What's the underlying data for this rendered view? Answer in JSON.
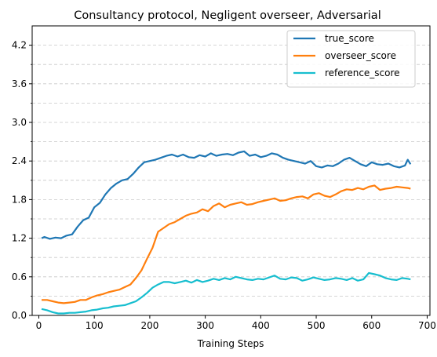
{
  "chart_data": {
    "type": "line",
    "title": "Consultancy protocol, Negligent overseer, Adversarial",
    "xlabel": "Training Steps",
    "ylabel": "",
    "xlim": [
      -12,
      705
    ],
    "ylim": [
      0.0,
      4.5
    ],
    "xticks": [
      0,
      100,
      200,
      300,
      400,
      500,
      600,
      700
    ],
    "yticks": [
      0.0,
      0.6,
      1.2,
      1.8,
      2.4,
      3.0,
      3.6,
      4.2
    ],
    "ytick_labels": [
      "0.0",
      "0.6",
      "1.2",
      "1.8",
      "2.4",
      "3.0",
      "3.6",
      "4.2"
    ],
    "grid": "horizontal dashed",
    "legend_position": "top-right",
    "series": [
      {
        "name": "true_score",
        "color": "#1f77b4",
        "points": [
          [
            5,
            1.2
          ],
          [
            10,
            1.22
          ],
          [
            20,
            1.19
          ],
          [
            30,
            1.21
          ],
          [
            40,
            1.2
          ],
          [
            50,
            1.24
          ],
          [
            60,
            1.26
          ],
          [
            70,
            1.38
          ],
          [
            80,
            1.48
          ],
          [
            90,
            1.52
          ],
          [
            100,
            1.68
          ],
          [
            110,
            1.75
          ],
          [
            120,
            1.88
          ],
          [
            130,
            1.98
          ],
          [
            140,
            2.05
          ],
          [
            150,
            2.1
          ],
          [
            160,
            2.12
          ],
          [
            170,
            2.2
          ],
          [
            180,
            2.3
          ],
          [
            190,
            2.38
          ],
          [
            200,
            2.4
          ],
          [
            210,
            2.42
          ],
          [
            220,
            2.45
          ],
          [
            230,
            2.48
          ],
          [
            240,
            2.5
          ],
          [
            250,
            2.47
          ],
          [
            260,
            2.5
          ],
          [
            270,
            2.46
          ],
          [
            280,
            2.45
          ],
          [
            290,
            2.49
          ],
          [
            300,
            2.47
          ],
          [
            310,
            2.52
          ],
          [
            320,
            2.48
          ],
          [
            330,
            2.5
          ],
          [
            340,
            2.51
          ],
          [
            350,
            2.49
          ],
          [
            360,
            2.53
          ],
          [
            370,
            2.55
          ],
          [
            380,
            2.48
          ],
          [
            390,
            2.5
          ],
          [
            400,
            2.46
          ],
          [
            410,
            2.48
          ],
          [
            420,
            2.52
          ],
          [
            430,
            2.5
          ],
          [
            440,
            2.45
          ],
          [
            450,
            2.42
          ],
          [
            460,
            2.4
          ],
          [
            470,
            2.38
          ],
          [
            480,
            2.36
          ],
          [
            490,
            2.4
          ],
          [
            500,
            2.32
          ],
          [
            510,
            2.3
          ],
          [
            520,
            2.33
          ],
          [
            530,
            2.32
          ],
          [
            540,
            2.36
          ],
          [
            550,
            2.42
          ],
          [
            560,
            2.45
          ],
          [
            570,
            2.4
          ],
          [
            580,
            2.35
          ],
          [
            590,
            2.32
          ],
          [
            600,
            2.38
          ],
          [
            610,
            2.35
          ],
          [
            620,
            2.34
          ],
          [
            630,
            2.36
          ],
          [
            640,
            2.32
          ],
          [
            650,
            2.3
          ],
          [
            660,
            2.33
          ],
          [
            665,
            2.42
          ],
          [
            670,
            2.35
          ]
        ]
      },
      {
        "name": "overseer_score",
        "color": "#ff7f0e",
        "points": [
          [
            5,
            0.24
          ],
          [
            15,
            0.24
          ],
          [
            25,
            0.22
          ],
          [
            35,
            0.2
          ],
          [
            45,
            0.19
          ],
          [
            55,
            0.2
          ],
          [
            65,
            0.21
          ],
          [
            75,
            0.24
          ],
          [
            85,
            0.24
          ],
          [
            95,
            0.28
          ],
          [
            105,
            0.31
          ],
          [
            115,
            0.33
          ],
          [
            125,
            0.36
          ],
          [
            135,
            0.38
          ],
          [
            145,
            0.4
          ],
          [
            155,
            0.44
          ],
          [
            165,
            0.48
          ],
          [
            175,
            0.58
          ],
          [
            185,
            0.7
          ],
          [
            195,
            0.88
          ],
          [
            205,
            1.05
          ],
          [
            215,
            1.3
          ],
          [
            225,
            1.36
          ],
          [
            235,
            1.42
          ],
          [
            245,
            1.45
          ],
          [
            255,
            1.5
          ],
          [
            265,
            1.55
          ],
          [
            275,
            1.58
          ],
          [
            285,
            1.6
          ],
          [
            295,
            1.65
          ],
          [
            305,
            1.62
          ],
          [
            315,
            1.7
          ],
          [
            325,
            1.74
          ],
          [
            335,
            1.68
          ],
          [
            345,
            1.72
          ],
          [
            355,
            1.74
          ],
          [
            365,
            1.76
          ],
          [
            375,
            1.72
          ],
          [
            385,
            1.73
          ],
          [
            395,
            1.76
          ],
          [
            405,
            1.78
          ],
          [
            415,
            1.8
          ],
          [
            425,
            1.82
          ],
          [
            435,
            1.78
          ],
          [
            445,
            1.79
          ],
          [
            455,
            1.82
          ],
          [
            465,
            1.84
          ],
          [
            475,
            1.85
          ],
          [
            485,
            1.82
          ],
          [
            495,
            1.88
          ],
          [
            505,
            1.9
          ],
          [
            515,
            1.86
          ],
          [
            525,
            1.84
          ],
          [
            535,
            1.88
          ],
          [
            545,
            1.93
          ],
          [
            555,
            1.96
          ],
          [
            565,
            1.95
          ],
          [
            575,
            1.98
          ],
          [
            585,
            1.96
          ],
          [
            595,
            2.0
          ],
          [
            605,
            2.02
          ],
          [
            615,
            1.95
          ],
          [
            625,
            1.97
          ],
          [
            635,
            1.98
          ],
          [
            645,
            2.0
          ],
          [
            655,
            1.99
          ],
          [
            665,
            1.98
          ],
          [
            670,
            1.97
          ]
        ]
      },
      {
        "name": "reference_score",
        "color": "#17becf",
        "points": [
          [
            5,
            0.1
          ],
          [
            15,
            0.08
          ],
          [
            25,
            0.05
          ],
          [
            35,
            0.03
          ],
          [
            45,
            0.03
          ],
          [
            55,
            0.04
          ],
          [
            65,
            0.04
          ],
          [
            75,
            0.05
          ],
          [
            85,
            0.06
          ],
          [
            95,
            0.08
          ],
          [
            105,
            0.09
          ],
          [
            115,
            0.11
          ],
          [
            125,
            0.12
          ],
          [
            135,
            0.14
          ],
          [
            145,
            0.15
          ],
          [
            155,
            0.16
          ],
          [
            165,
            0.19
          ],
          [
            175,
            0.22
          ],
          [
            185,
            0.28
          ],
          [
            195,
            0.35
          ],
          [
            205,
            0.43
          ],
          [
            215,
            0.48
          ],
          [
            225,
            0.52
          ],
          [
            235,
            0.52
          ],
          [
            245,
            0.5
          ],
          [
            255,
            0.52
          ],
          [
            265,
            0.54
          ],
          [
            275,
            0.51
          ],
          [
            285,
            0.55
          ],
          [
            295,
            0.52
          ],
          [
            305,
            0.54
          ],
          [
            315,
            0.57
          ],
          [
            325,
            0.55
          ],
          [
            335,
            0.58
          ],
          [
            345,
            0.56
          ],
          [
            355,
            0.6
          ],
          [
            365,
            0.58
          ],
          [
            375,
            0.56
          ],
          [
            385,
            0.55
          ],
          [
            395,
            0.57
          ],
          [
            405,
            0.56
          ],
          [
            415,
            0.59
          ],
          [
            425,
            0.62
          ],
          [
            435,
            0.57
          ],
          [
            445,
            0.56
          ],
          [
            455,
            0.59
          ],
          [
            465,
            0.58
          ],
          [
            475,
            0.54
          ],
          [
            485,
            0.56
          ],
          [
            495,
            0.59
          ],
          [
            505,
            0.57
          ],
          [
            515,
            0.55
          ],
          [
            525,
            0.56
          ],
          [
            535,
            0.58
          ],
          [
            545,
            0.57
          ],
          [
            555,
            0.55
          ],
          [
            565,
            0.58
          ],
          [
            575,
            0.54
          ],
          [
            585,
            0.56
          ],
          [
            595,
            0.66
          ],
          [
            605,
            0.64
          ],
          [
            615,
            0.62
          ],
          [
            625,
            0.58
          ],
          [
            635,
            0.56
          ],
          [
            645,
            0.55
          ],
          [
            655,
            0.58
          ],
          [
            665,
            0.57
          ],
          [
            670,
            0.56
          ]
        ]
      }
    ]
  }
}
